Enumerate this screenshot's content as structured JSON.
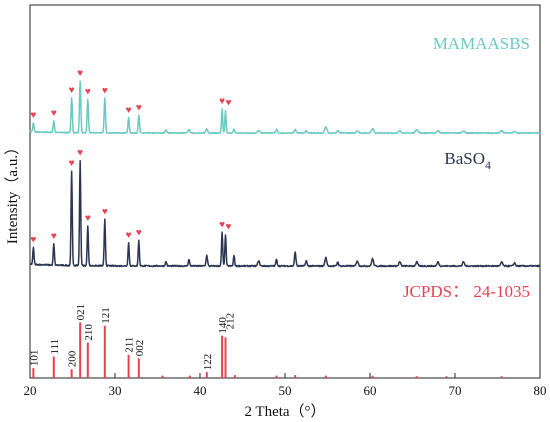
{
  "chart_data": {
    "type": "line",
    "xlabel": "2 Theta（°）",
    "ylabel": "Intensity（a.u.）",
    "xlim": [
      20,
      80
    ],
    "xticks": [
      "20",
      "30",
      "40",
      "50",
      "60",
      "70",
      "80"
    ],
    "y_ticks_shown": false,
    "marker": "♥",
    "marker_color": "#e8414f",
    "series": [
      {
        "name": "MAMAASBS",
        "label_text": "MAMAASBS",
        "color": "#6cc9c1",
        "baseline": 0.07,
        "peaks": [
          {
            "x": 20.4,
            "y": 0.12,
            "w": 0.11
          },
          {
            "x": 22.8,
            "y": 0.16,
            "w": 0.11
          },
          {
            "x": 24.9,
            "y": 0.48,
            "w": 0.11
          },
          {
            "x": 25.9,
            "y": 0.72,
            "w": 0.11
          },
          {
            "x": 26.8,
            "y": 0.46,
            "w": 0.11
          },
          {
            "x": 28.8,
            "y": 0.48,
            "w": 0.11
          },
          {
            "x": 31.6,
            "y": 0.21,
            "w": 0.11
          },
          {
            "x": 32.8,
            "y": 0.24,
            "w": 0.11
          },
          {
            "x": 36.0,
            "y": 0.04,
            "w": 0.15
          },
          {
            "x": 38.7,
            "y": 0.05,
            "w": 0.15
          },
          {
            "x": 40.8,
            "y": 0.06,
            "w": 0.15
          },
          {
            "x": 42.6,
            "y": 0.33,
            "w": 0.1
          },
          {
            "x": 43.0,
            "y": 0.31,
            "w": 0.1
          },
          {
            "x": 44.0,
            "y": 0.05,
            "w": 0.12
          },
          {
            "x": 46.9,
            "y": 0.03,
            "w": 0.2
          },
          {
            "x": 49.0,
            "y": 0.05,
            "w": 0.15
          },
          {
            "x": 51.2,
            "y": 0.05,
            "w": 0.15
          },
          {
            "x": 52.5,
            "y": 0.03,
            "w": 0.15
          },
          {
            "x": 54.8,
            "y": 0.08,
            "w": 0.2
          },
          {
            "x": 56.2,
            "y": 0.03,
            "w": 0.15
          },
          {
            "x": 58.5,
            "y": 0.03,
            "w": 0.2
          },
          {
            "x": 60.3,
            "y": 0.06,
            "w": 0.2
          },
          {
            "x": 63.5,
            "y": 0.03,
            "w": 0.2
          },
          {
            "x": 65.5,
            "y": 0.05,
            "w": 0.2
          },
          {
            "x": 68.0,
            "y": 0.03,
            "w": 0.2
          },
          {
            "x": 71.0,
            "y": 0.03,
            "w": 0.2
          },
          {
            "x": 75.5,
            "y": 0.03,
            "w": 0.2
          },
          {
            "x": 77.0,
            "y": 0.02,
            "w": 0.2
          }
        ],
        "marked_peaks": [
          20.4,
          22.8,
          24.9,
          25.9,
          26.8,
          28.8,
          31.6,
          32.8,
          42.6,
          43.0
        ]
      },
      {
        "name": "BaSO4",
        "label_text": "BaSO",
        "label_subscript": "4",
        "color": "#2b3552",
        "baseline": 0.07,
        "peaks": [
          {
            "x": 20.4,
            "y": 0.16,
            "w": 0.1
          },
          {
            "x": 22.8,
            "y": 0.2,
            "w": 0.1
          },
          {
            "x": 24.9,
            "y": 0.9,
            "w": 0.1
          },
          {
            "x": 25.9,
            "y": 1.0,
            "w": 0.1
          },
          {
            "x": 26.8,
            "y": 0.38,
            "w": 0.1
          },
          {
            "x": 28.8,
            "y": 0.44,
            "w": 0.1
          },
          {
            "x": 31.6,
            "y": 0.22,
            "w": 0.1
          },
          {
            "x": 32.8,
            "y": 0.24,
            "w": 0.1
          },
          {
            "x": 36.0,
            "y": 0.04,
            "w": 0.12
          },
          {
            "x": 38.7,
            "y": 0.06,
            "w": 0.12
          },
          {
            "x": 40.8,
            "y": 0.1,
            "w": 0.12
          },
          {
            "x": 42.6,
            "y": 0.32,
            "w": 0.1
          },
          {
            "x": 43.0,
            "y": 0.3,
            "w": 0.1
          },
          {
            "x": 44.0,
            "y": 0.1,
            "w": 0.1
          },
          {
            "x": 46.9,
            "y": 0.05,
            "w": 0.15
          },
          {
            "x": 49.0,
            "y": 0.06,
            "w": 0.12
          },
          {
            "x": 51.2,
            "y": 0.13,
            "w": 0.12
          },
          {
            "x": 52.5,
            "y": 0.05,
            "w": 0.12
          },
          {
            "x": 54.8,
            "y": 0.08,
            "w": 0.15
          },
          {
            "x": 56.2,
            "y": 0.04,
            "w": 0.12
          },
          {
            "x": 58.5,
            "y": 0.05,
            "w": 0.15
          },
          {
            "x": 60.3,
            "y": 0.07,
            "w": 0.15
          },
          {
            "x": 63.5,
            "y": 0.04,
            "w": 0.15
          },
          {
            "x": 65.5,
            "y": 0.04,
            "w": 0.15
          },
          {
            "x": 68.0,
            "y": 0.04,
            "w": 0.15
          },
          {
            "x": 71.0,
            "y": 0.04,
            "w": 0.15
          },
          {
            "x": 75.5,
            "y": 0.04,
            "w": 0.15
          },
          {
            "x": 77.0,
            "y": 0.03,
            "w": 0.15
          }
        ],
        "marked_peaks": [
          20.4,
          22.8,
          24.9,
          25.9,
          26.8,
          28.8,
          31.6,
          32.8,
          42.6,
          43.0
        ]
      }
    ],
    "reference": {
      "name": "JCPDS： 24-1035",
      "color": "#e8414f",
      "lines": [
        {
          "x": 20.4,
          "h": 0.17,
          "label": "101"
        },
        {
          "x": 22.8,
          "h": 0.37,
          "label": "111"
        },
        {
          "x": 24.9,
          "h": 0.15,
          "label": "200"
        },
        {
          "x": 25.9,
          "h": 0.96,
          "label": "021"
        },
        {
          "x": 26.8,
          "h": 0.61,
          "label": "210"
        },
        {
          "x": 28.8,
          "h": 0.9,
          "label": "121"
        },
        {
          "x": 31.6,
          "h": 0.4,
          "label": "211"
        },
        {
          "x": 32.8,
          "h": 0.34,
          "label": "002"
        },
        {
          "x": 40.8,
          "h": 0.1,
          "label": "122"
        },
        {
          "x": 42.6,
          "h": 0.73,
          "label": "140"
        },
        {
          "x": 43.0,
          "h": 0.7,
          "label": "212"
        },
        {
          "x": 35.6,
          "h": 0.04,
          "label": ""
        },
        {
          "x": 38.8,
          "h": 0.04,
          "label": ""
        },
        {
          "x": 44.1,
          "h": 0.05,
          "label": ""
        },
        {
          "x": 49.0,
          "h": 0.04,
          "label": ""
        },
        {
          "x": 51.2,
          "h": 0.05,
          "label": ""
        },
        {
          "x": 54.8,
          "h": 0.04,
          "label": ""
        },
        {
          "x": 60.3,
          "h": 0.04,
          "label": ""
        },
        {
          "x": 65.5,
          "h": 0.03,
          "label": ""
        },
        {
          "x": 69.0,
          "h": 0.03,
          "label": ""
        },
        {
          "x": 75.5,
          "h": 0.03,
          "label": ""
        }
      ]
    }
  }
}
